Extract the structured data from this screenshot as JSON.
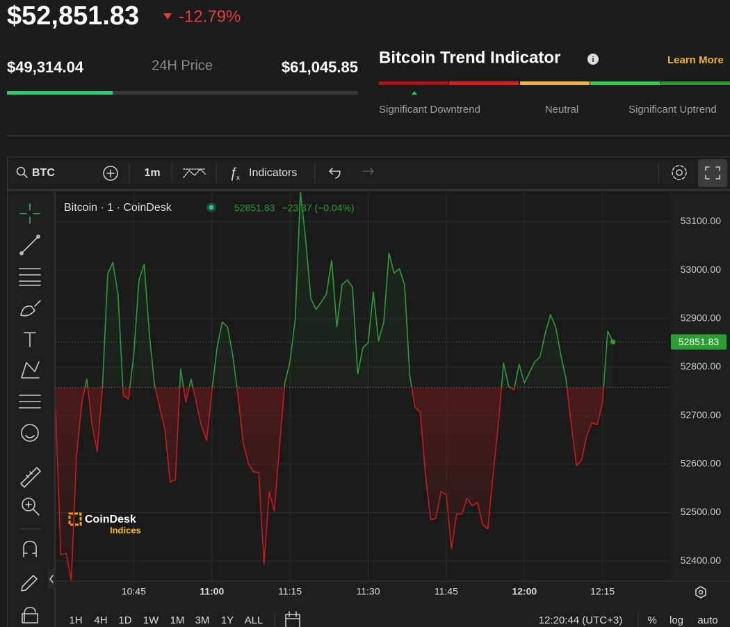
{
  "header": {
    "price": {
      "value": 52851.83,
      "label": "$52,851.83"
    },
    "change": "-12.79%"
  },
  "range": {
    "low": {
      "value": 49314.04,
      "label": "$49,314.04"
    },
    "title": "24H Price",
    "high": {
      "value": 61045.85,
      "label": "$61,045.85"
    }
  },
  "trend": {
    "title": "Bitcoin Trend Indicator",
    "learn_more": "Learn More",
    "labels": [
      "Significant Downtrend",
      "Neutral",
      "Significant Uptrend"
    ]
  },
  "toolbar": {
    "symbol": "BTC",
    "interval": "1m",
    "indicators": "Indicators"
  },
  "logo": {
    "name": "CoinDesk",
    "sub": "Indices"
  },
  "bottom": {
    "ranges": [
      "1H",
      "4H",
      "1D",
      "1W",
      "1M",
      "3M",
      "1Y",
      "ALL"
    ],
    "time": "12:20:44 (UTC+3)",
    "options": [
      "%",
      "log",
      "auto"
    ]
  },
  "chart_data": {
    "type": "line",
    "x": [
      630,
      631,
      632,
      633,
      634,
      635,
      636,
      637,
      638,
      639,
      640,
      641,
      642,
      643,
      644,
      645,
      646,
      647,
      648,
      649,
      650,
      651,
      652,
      653,
      654,
      655,
      656,
      657,
      658,
      659,
      660,
      661,
      662,
      663,
      664,
      665,
      666,
      667,
      668,
      669,
      670,
      671,
      672,
      673,
      674,
      675,
      676,
      677,
      678,
      679,
      680,
      681,
      682,
      683,
      684,
      685,
      686,
      687,
      688,
      689,
      690,
      691,
      692,
      693,
      694,
      695,
      696,
      697,
      698,
      699,
      700,
      701,
      702,
      703,
      704,
      705,
      706,
      707,
      708,
      709,
      710,
      711,
      712,
      713,
      714,
      715,
      716,
      717,
      718,
      719,
      720,
      721,
      722,
      723,
      724,
      725,
      726,
      727,
      728,
      729,
      730,
      731,
      732,
      733,
      734,
      735,
      736,
      737
    ],
    "series": [
      {
        "name": "Bitcoin · 1 · CoinDesk",
        "color": "#2a9d35",
        "down_color": "#c91a1a",
        "values": [
          52709,
          52413,
          52416,
          52360,
          52615,
          52724,
          52775,
          52681,
          52626,
          52760,
          52992,
          53016,
          52948,
          52741,
          52734,
          52825,
          52980,
          53012,
          52869,
          52763,
          52717,
          52670,
          52562,
          52568,
          52796,
          52727,
          52775,
          52727,
          52678,
          52649,
          52749,
          52840,
          52893,
          52883,
          52825,
          52743,
          52644,
          52601,
          52584,
          52582,
          52394,
          52543,
          52503,
          52637,
          52767,
          52811,
          52898,
          53161,
          53064,
          52941,
          52919,
          52934,
          52951,
          53020,
          52883,
          52970,
          52980,
          52965,
          52786,
          52840,
          52850,
          52955,
          52854,
          52893,
          53035,
          52994,
          53003,
          52970,
          52782,
          52717,
          52707,
          52579,
          52485,
          52488,
          52543,
          52536,
          52425,
          52497,
          52497,
          52529,
          52514,
          52521,
          52475,
          52466,
          52579,
          52681,
          52808,
          52760,
          52753,
          52806,
          52767,
          52789,
          52811,
          52821,
          52869,
          52908,
          52883,
          52825,
          52775,
          52681,
          52597,
          52608,
          52659,
          52685,
          52681,
          52727,
          52874,
          52851.83
        ]
      }
    ],
    "baseline": 52758,
    "legend_last": "52851.83",
    "legend_change": "−23.37 (−0.04%)",
    "xlim": [
      630,
      748
    ],
    "xticks": [
      {
        "value": 645,
        "label": "10:45"
      },
      {
        "value": 660,
        "label": "11:00"
      },
      {
        "value": 675,
        "label": "11:15"
      },
      {
        "value": 690,
        "label": "11:30"
      },
      {
        "value": 705,
        "label": "11:45"
      },
      {
        "value": 720,
        "label": "12:00"
      },
      {
        "value": 735,
        "label": "12:15"
      }
    ],
    "ylim": [
      52360,
      53161
    ],
    "yticks": [
      {
        "value": 52400,
        "label": "52400.00"
      },
      {
        "value": 52500,
        "label": "52500.00"
      },
      {
        "value": 52600,
        "label": "52600.00"
      },
      {
        "value": 52700,
        "label": "52700.00"
      },
      {
        "value": 52800,
        "label": "52800.00"
      },
      {
        "value": 52900,
        "label": "52900.00"
      },
      {
        "value": 53000,
        "label": "53000.00"
      },
      {
        "value": 53100,
        "label": "53100.00"
      }
    ],
    "grid": true
  }
}
